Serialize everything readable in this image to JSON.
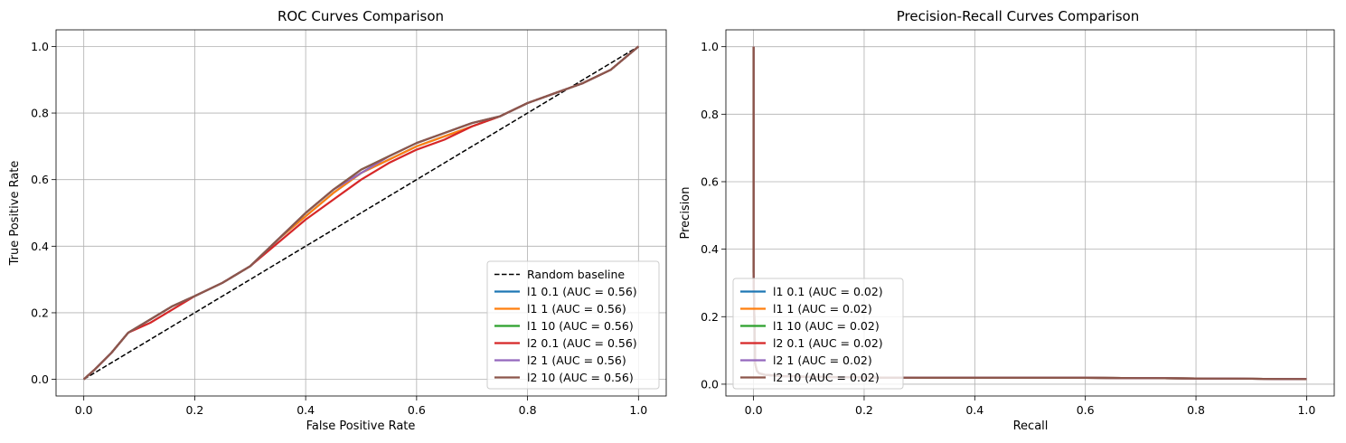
{
  "chart_data": [
    {
      "type": "line",
      "title": "ROC Curves Comparison",
      "xlabel": "False Positive Rate",
      "ylabel": "True Positive Rate",
      "xlim": [
        -0.05,
        1.05
      ],
      "ylim": [
        -0.05,
        1.05
      ],
      "xticks": [
        "0.0",
        "0.2",
        "0.4",
        "0.6",
        "0.8",
        "1.0"
      ],
      "yticks": [
        "0.0",
        "0.2",
        "0.4",
        "0.6",
        "0.8",
        "1.0"
      ],
      "grid": true,
      "legend_position": "lower right",
      "series": [
        {
          "name": "Random baseline",
          "color": "#000000",
          "dashed": true,
          "x": [
            0,
            1
          ],
          "y": [
            0,
            1
          ]
        },
        {
          "name": "l1 0.1 (AUC = 0.56)",
          "color": "#1f77b4",
          "x": [
            0,
            0.02,
            0.05,
            0.08,
            0.12,
            0.16,
            0.2,
            0.25,
            0.3,
            0.35,
            0.4,
            0.45,
            0.5,
            0.55,
            0.6,
            0.65,
            0.7,
            0.75,
            0.8,
            0.85,
            0.9,
            0.95,
            1.0
          ],
          "y": [
            0,
            0.03,
            0.08,
            0.14,
            0.18,
            0.22,
            0.25,
            0.29,
            0.34,
            0.42,
            0.49,
            0.56,
            0.62,
            0.66,
            0.7,
            0.73,
            0.76,
            0.79,
            0.83,
            0.86,
            0.89,
            0.93,
            1.0
          ]
        },
        {
          "name": "l1 1 (AUC = 0.56)",
          "color": "#ff7f0e",
          "x": [
            0,
            0.02,
            0.05,
            0.08,
            0.12,
            0.16,
            0.2,
            0.25,
            0.3,
            0.35,
            0.4,
            0.45,
            0.5,
            0.55,
            0.6,
            0.65,
            0.7,
            0.75,
            0.8,
            0.85,
            0.9,
            0.95,
            1.0
          ],
          "y": [
            0,
            0.03,
            0.08,
            0.14,
            0.18,
            0.22,
            0.25,
            0.29,
            0.34,
            0.42,
            0.49,
            0.56,
            0.62,
            0.66,
            0.7,
            0.73,
            0.76,
            0.79,
            0.83,
            0.86,
            0.89,
            0.93,
            1.0
          ]
        },
        {
          "name": "l1 10 (AUC = 0.56)",
          "color": "#2ca02c",
          "x": [
            0,
            0.02,
            0.05,
            0.08,
            0.12,
            0.16,
            0.2,
            0.25,
            0.3,
            0.35,
            0.4,
            0.45,
            0.5,
            0.55,
            0.6,
            0.65,
            0.7,
            0.75,
            0.8,
            0.85,
            0.9,
            0.95,
            1.0
          ],
          "y": [
            0,
            0.03,
            0.08,
            0.14,
            0.18,
            0.22,
            0.25,
            0.29,
            0.34,
            0.42,
            0.5,
            0.57,
            0.63,
            0.67,
            0.71,
            0.74,
            0.77,
            0.79,
            0.83,
            0.86,
            0.89,
            0.93,
            1.0
          ]
        },
        {
          "name": "l2 0.1 (AUC = 0.56)",
          "color": "#d62728",
          "x": [
            0,
            0.02,
            0.05,
            0.08,
            0.12,
            0.16,
            0.2,
            0.25,
            0.3,
            0.35,
            0.4,
            0.45,
            0.5,
            0.55,
            0.6,
            0.65,
            0.7,
            0.75,
            0.8,
            0.85,
            0.9,
            0.95,
            1.0
          ],
          "y": [
            0,
            0.03,
            0.08,
            0.14,
            0.17,
            0.21,
            0.25,
            0.29,
            0.34,
            0.41,
            0.48,
            0.54,
            0.6,
            0.65,
            0.69,
            0.72,
            0.76,
            0.79,
            0.83,
            0.86,
            0.89,
            0.93,
            1.0
          ]
        },
        {
          "name": "l2 1 (AUC = 0.56)",
          "color": "#9467bd",
          "x": [
            0,
            0.02,
            0.05,
            0.08,
            0.12,
            0.16,
            0.2,
            0.25,
            0.3,
            0.35,
            0.4,
            0.45,
            0.5,
            0.55,
            0.6,
            0.65,
            0.7,
            0.75,
            0.8,
            0.85,
            0.9,
            0.95,
            1.0
          ],
          "y": [
            0,
            0.03,
            0.08,
            0.14,
            0.18,
            0.22,
            0.25,
            0.29,
            0.34,
            0.42,
            0.5,
            0.57,
            0.62,
            0.67,
            0.71,
            0.74,
            0.77,
            0.79,
            0.83,
            0.86,
            0.89,
            0.93,
            1.0
          ]
        },
        {
          "name": "l2 10 (AUC = 0.56)",
          "color": "#8c564b",
          "x": [
            0,
            0.02,
            0.05,
            0.08,
            0.12,
            0.16,
            0.2,
            0.25,
            0.3,
            0.35,
            0.4,
            0.45,
            0.5,
            0.55,
            0.6,
            0.65,
            0.7,
            0.75,
            0.8,
            0.85,
            0.9,
            0.95,
            1.0
          ],
          "y": [
            0,
            0.03,
            0.08,
            0.14,
            0.18,
            0.22,
            0.25,
            0.29,
            0.34,
            0.42,
            0.5,
            0.57,
            0.63,
            0.67,
            0.71,
            0.74,
            0.77,
            0.79,
            0.83,
            0.86,
            0.89,
            0.93,
            1.0
          ]
        }
      ]
    },
    {
      "type": "line",
      "title": "Precision-Recall Curves Comparison",
      "xlabel": "Recall",
      "ylabel": "Precision",
      "xlim": [
        -0.05,
        1.05
      ],
      "ylim": [
        -0.035,
        1.05
      ],
      "xticks": [
        "0.0",
        "0.2",
        "0.4",
        "0.6",
        "0.8",
        "1.0"
      ],
      "yticks": [
        "0.0",
        "0.2",
        "0.4",
        "0.6",
        "0.8",
        "1.0"
      ],
      "grid": true,
      "legend_position": "lower left",
      "series": [
        {
          "name": "l1 0.1 (AUC = 0.02)",
          "color": "#1f77b4",
          "x": [
            0,
            0,
            0.003,
            0.006,
            0.01,
            0.02,
            0.05,
            0.1,
            0.15,
            0.2,
            0.3,
            0.4,
            0.5,
            0.6,
            0.7,
            0.8,
            0.9,
            1.0
          ],
          "y": [
            1.0,
            0.33,
            0.06,
            0.04,
            0.032,
            0.028,
            0.024,
            0.022,
            0.021,
            0.02,
            0.019,
            0.019,
            0.019,
            0.019,
            0.018,
            0.017,
            0.016,
            0.015
          ]
        },
        {
          "name": "l1 1 (AUC = 0.02)",
          "color": "#ff7f0e",
          "x": [
            0,
            0,
            0.003,
            0.006,
            0.01,
            0.02,
            0.05,
            0.1,
            0.15,
            0.2,
            0.3,
            0.4,
            0.5,
            0.6,
            0.7,
            0.8,
            0.9,
            1.0
          ],
          "y": [
            1.0,
            0.33,
            0.06,
            0.04,
            0.032,
            0.028,
            0.024,
            0.022,
            0.021,
            0.02,
            0.019,
            0.019,
            0.019,
            0.019,
            0.018,
            0.017,
            0.016,
            0.015
          ]
        },
        {
          "name": "l1 10 (AUC = 0.02)",
          "color": "#2ca02c",
          "x": [
            0,
            0,
            0.003,
            0.006,
            0.01,
            0.02,
            0.05,
            0.1,
            0.15,
            0.2,
            0.3,
            0.4,
            0.5,
            0.6,
            0.7,
            0.8,
            0.9,
            1.0
          ],
          "y": [
            1.0,
            0.33,
            0.06,
            0.04,
            0.032,
            0.028,
            0.024,
            0.022,
            0.021,
            0.02,
            0.019,
            0.019,
            0.019,
            0.019,
            0.018,
            0.017,
            0.016,
            0.015
          ]
        },
        {
          "name": "l2 0.1 (AUC = 0.02)",
          "color": "#d62728",
          "x": [
            0,
            0,
            0.003,
            0.006,
            0.01,
            0.02,
            0.05,
            0.1,
            0.15,
            0.2,
            0.3,
            0.4,
            0.5,
            0.6,
            0.7,
            0.8,
            0.9,
            1.0
          ],
          "y": [
            1.0,
            0.33,
            0.06,
            0.04,
            0.032,
            0.028,
            0.024,
            0.022,
            0.021,
            0.02,
            0.019,
            0.019,
            0.019,
            0.019,
            0.018,
            0.017,
            0.016,
            0.015
          ]
        },
        {
          "name": "l2 1 (AUC = 0.02)",
          "color": "#9467bd",
          "x": [
            0,
            0,
            0.003,
            0.006,
            0.01,
            0.02,
            0.05,
            0.1,
            0.15,
            0.2,
            0.3,
            0.4,
            0.5,
            0.6,
            0.7,
            0.8,
            0.9,
            1.0
          ],
          "y": [
            1.0,
            0.33,
            0.06,
            0.04,
            0.032,
            0.028,
            0.024,
            0.022,
            0.021,
            0.02,
            0.019,
            0.019,
            0.019,
            0.019,
            0.018,
            0.017,
            0.016,
            0.015
          ]
        },
        {
          "name": "l2 10 (AUC = 0.02)",
          "color": "#8c564b",
          "x": [
            0,
            0,
            0.003,
            0.006,
            0.01,
            0.02,
            0.05,
            0.1,
            0.15,
            0.2,
            0.3,
            0.4,
            0.5,
            0.6,
            0.7,
            0.8,
            0.9,
            1.0
          ],
          "y": [
            1.0,
            0.33,
            0.06,
            0.04,
            0.032,
            0.028,
            0.024,
            0.022,
            0.021,
            0.02,
            0.019,
            0.019,
            0.019,
            0.019,
            0.018,
            0.017,
            0.016,
            0.015
          ]
        }
      ]
    }
  ]
}
